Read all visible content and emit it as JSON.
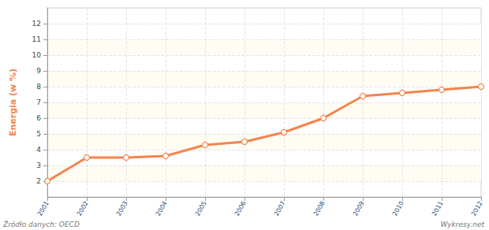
{
  "chart_data": {
    "type": "line",
    "y_label": "Energia (w %)",
    "source": "Źródło danych: OECD",
    "credit": "Wykresy.net",
    "watermark": "wykresy.net",
    "categories": [
      "2001",
      "2002",
      "2003",
      "2004",
      "2005",
      "2006",
      "2007",
      "2008",
      "2009",
      "2010",
      "2011",
      "2012"
    ],
    "values": [
      2.0,
      3.5,
      3.5,
      3.6,
      4.3,
      4.5,
      5.1,
      6.0,
      7.4,
      7.6,
      7.8,
      8.0
    ],
    "color": "#f5844c",
    "marker": "circle",
    "ylim": [
      1,
      13
    ],
    "yticks": [
      2,
      3,
      4,
      5,
      6,
      7,
      8,
      9,
      10,
      11,
      12
    ],
    "grid": true
  }
}
